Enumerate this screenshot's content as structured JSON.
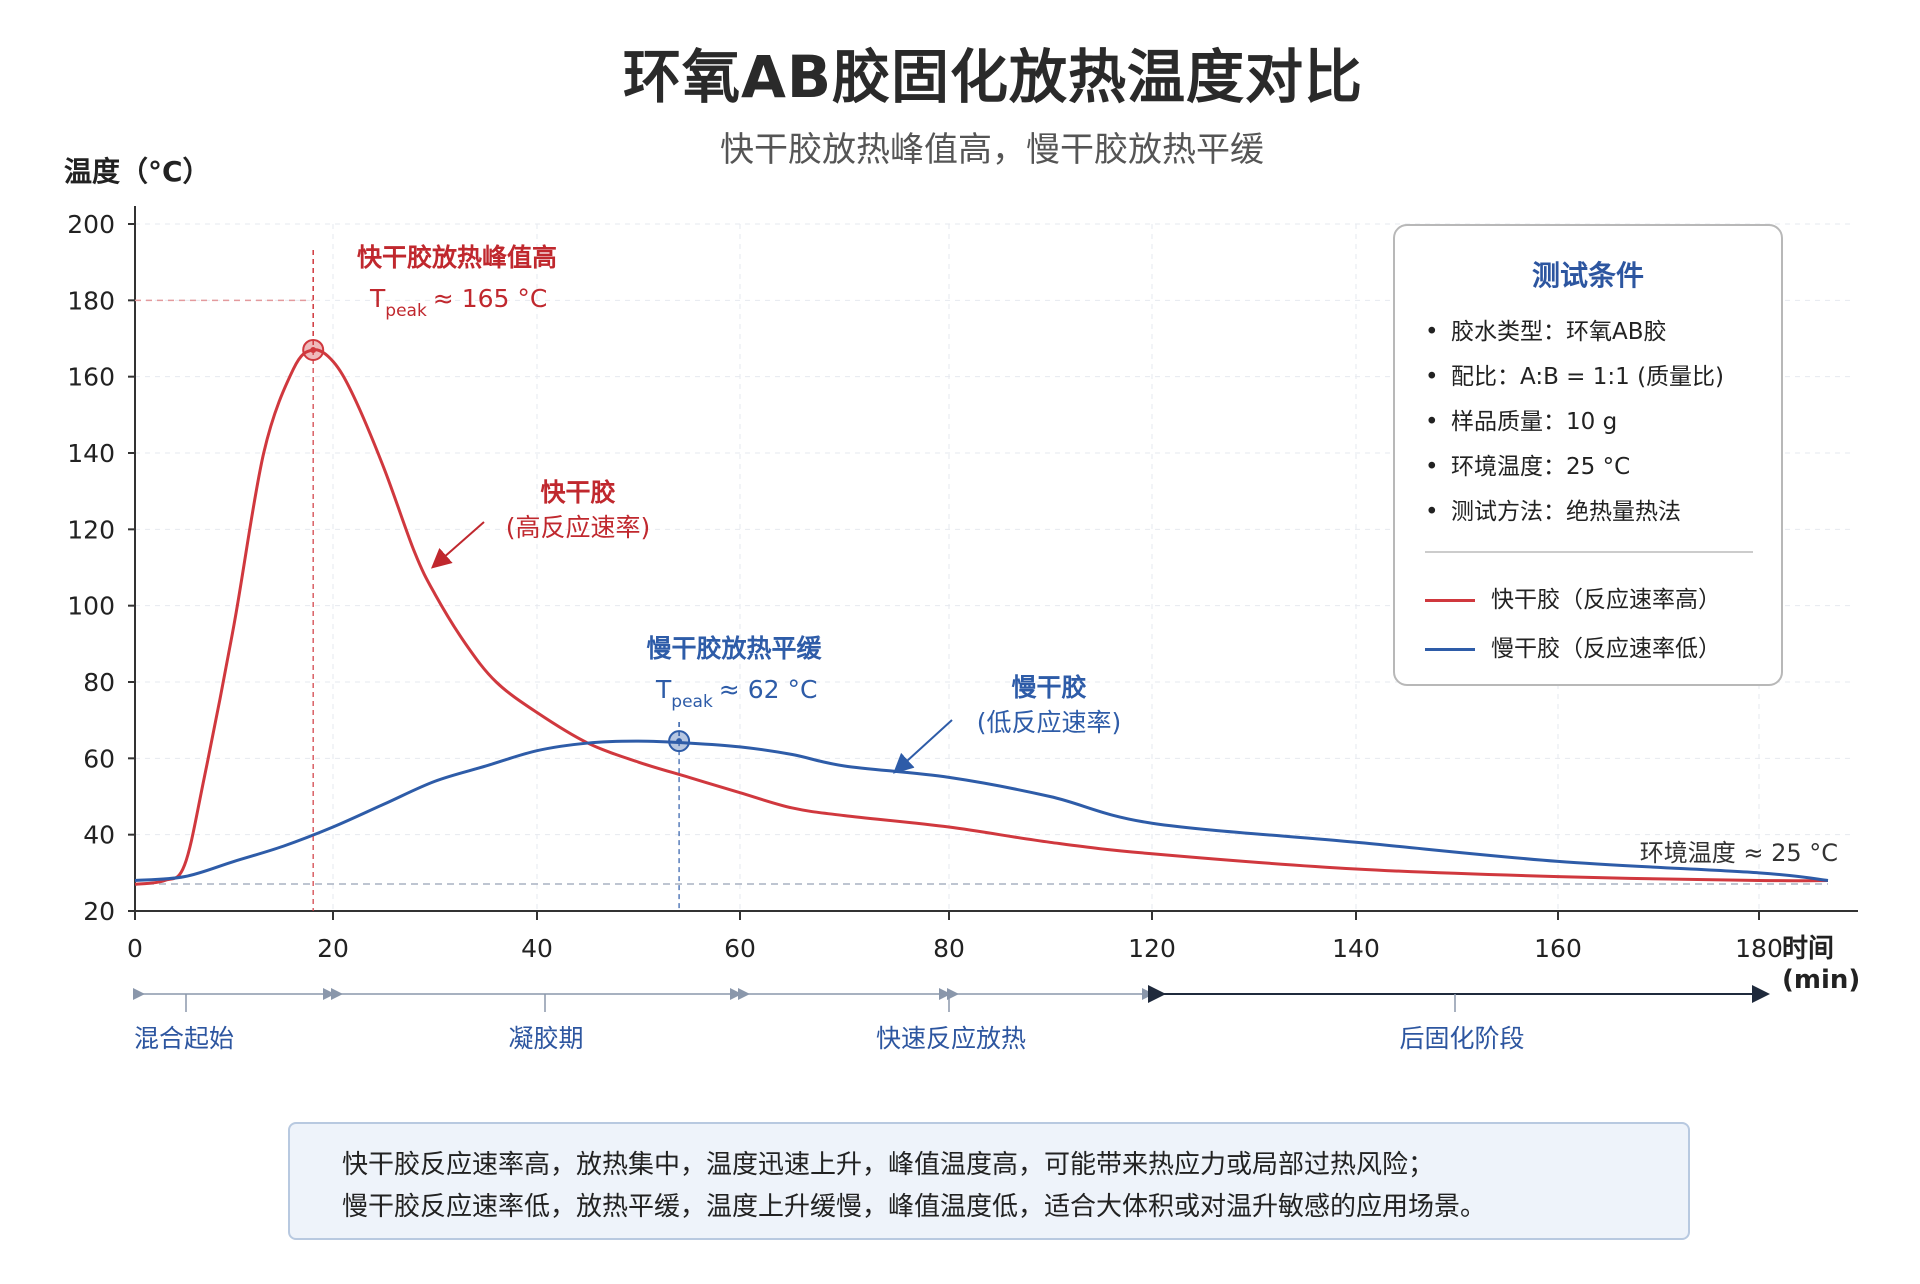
{
  "title": "环氧AB胶固化放热温度对比",
  "subtitle": "快干胶放热峰值高，慢干胶放热平缓",
  "chart_data": {
    "type": "line",
    "ylabel": "温度（°C）",
    "xlabel": "时间 (min)",
    "ylim": [
      20,
      200
    ],
    "y_ticks": [
      "20",
      "40",
      "60",
      "80",
      "100",
      "120",
      "140",
      "160",
      "180",
      "200"
    ],
    "x_ticks": [
      "0",
      "20",
      "40",
      "60",
      "80",
      "120",
      "140",
      "160",
      "180"
    ],
    "grid": true,
    "series": [
      {
        "name": "快干胶（反应速率高）",
        "color": "#d0383e",
        "x": [
          0,
          3,
          5,
          7,
          10,
          13,
          16,
          18,
          20,
          22,
          25,
          28,
          30,
          33,
          36,
          40,
          45,
          50,
          55,
          60,
          65,
          70,
          80,
          100,
          120,
          140,
          160,
          180,
          186
        ],
        "y": [
          27,
          28,
          32,
          55,
          95,
          140,
          162,
          167,
          164,
          155,
          136,
          114,
          103,
          90,
          80,
          72,
          64,
          59,
          55,
          51,
          47,
          45,
          42,
          38,
          35,
          31,
          29,
          28,
          28
        ]
      },
      {
        "name": "慢干胶（反应速率低）",
        "color": "#2e5ca8",
        "x": [
          0,
          5,
          10,
          15,
          20,
          25,
          30,
          35,
          40,
          45,
          50,
          55,
          60,
          65,
          70,
          80,
          100,
          120,
          140,
          160,
          180,
          186
        ],
        "y": [
          28,
          29,
          33,
          37,
          42,
          48,
          54,
          58,
          62,
          64,
          64.5,
          64,
          63,
          61,
          58,
          55,
          50,
          43,
          38,
          33,
          30,
          28
        ]
      }
    ],
    "annotations": {
      "fast_peak_title": "快干胶放热峰值高",
      "fast_peak_T": "T",
      "fast_peak_sub": "peak",
      "fast_peak_value": "≈ 165 °C",
      "slow_peak_title": "慢干胶放热平缓",
      "slow_peak_T": "T",
      "slow_peak_sub": "peak",
      "slow_peak_value": "≈ 62 °C",
      "fast_label_1": "快干胶",
      "fast_label_2": "(高反应速率)",
      "slow_label_1": "慢干胶",
      "slow_label_2": "(低反应速率)",
      "ambient": "环境温度 ≈ 25 °C"
    },
    "stages": [
      "混合起始",
      "凝胶期",
      "快速反应放热",
      "后固化阶段"
    ],
    "legend_placement": "top-right"
  },
  "legend": {
    "title": "测试条件",
    "conditions": [
      "胶水类型：环氧AB胶",
      "配比：A:B = 1:1 (质量比)",
      "样品质量：10 g",
      "环境温度：25 °C",
      "测试方法：绝热量热法"
    ],
    "items": [
      "快干胶（反应速率高）",
      "慢干胶（反应速率低）"
    ]
  },
  "note": {
    "line1": "快干胶反应速率高，放热集中，温度迅速上升，峰值温度高，可能带来热应力或局部过热风险；",
    "line2": "慢干胶反应速率低，放热平缓，温度上升缓慢，峰值温度低，适合大体积或对温升敏感的应用场景。"
  },
  "colors": {
    "fast": "#d0383e",
    "slow": "#2e5ca8",
    "stage": "#2d56a0",
    "axis": "#333333"
  }
}
